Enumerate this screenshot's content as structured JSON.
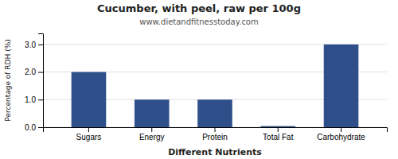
{
  "chart_data": {
    "type": "bar",
    "title": "Cucumber, with peel, raw per 100g",
    "subtitle": "www.dietandfitnesstoday.com",
    "categories": [
      "Sugars",
      "Energy",
      "Protein",
      "Total Fat",
      "Carbohydrate"
    ],
    "values": [
      2.0,
      1.0,
      1.0,
      0.04,
      3.0
    ],
    "color": "#2e4f8a",
    "xlabel": "Different Nutrients",
    "ylabel": "Percentage of RDH (%)",
    "ylim": [
      0,
      3.4
    ],
    "yticks": [
      {
        "value": 0.0,
        "label": "0.0"
      },
      {
        "value": 1.0,
        "label": "1.0"
      },
      {
        "value": 2.0,
        "label": "2.0"
      },
      {
        "value": 3.0,
        "label": "3.0"
      }
    ],
    "grid": true
  }
}
